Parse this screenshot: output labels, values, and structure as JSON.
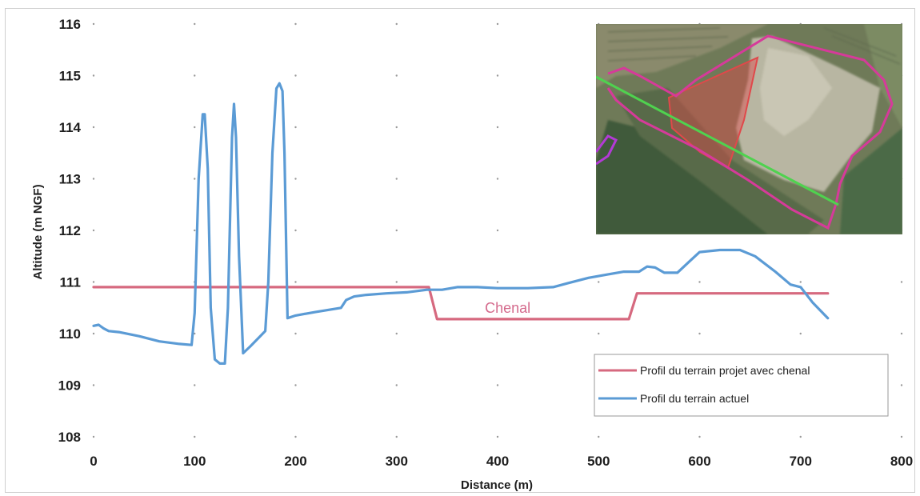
{
  "chart_data": {
    "type": "line",
    "xlabel": "Distance (m)",
    "ylabel": "Altitude (m NGF)",
    "xlim": [
      0,
      800
    ],
    "ylim": [
      108,
      116
    ],
    "x_ticks": [
      "0",
      "100",
      "200",
      "300",
      "400",
      "500",
      "600",
      "700",
      "800"
    ],
    "y_ticks": [
      "108",
      "109",
      "110",
      "111",
      "112",
      "113",
      "114",
      "115",
      "116"
    ],
    "grid": "dotted-points",
    "legend_position": "bottom-right",
    "annotation": {
      "text": "Chenal",
      "x": 410,
      "y": 110.5
    },
    "series": [
      {
        "name": "Profil du terrain projet avec chenal",
        "color": "#d6697f",
        "points": [
          [
            0,
            110.9
          ],
          [
            332,
            110.9
          ],
          [
            340,
            110.28
          ],
          [
            530,
            110.28
          ],
          [
            538,
            110.78
          ],
          [
            727,
            110.78
          ]
        ]
      },
      {
        "name": "Profil du terrain actuel",
        "color": "#5b9bd5",
        "points": [
          [
            0,
            110.15
          ],
          [
            5,
            110.17
          ],
          [
            10,
            110.1
          ],
          [
            15,
            110.05
          ],
          [
            25,
            110.03
          ],
          [
            45,
            109.95
          ],
          [
            65,
            109.85
          ],
          [
            85,
            109.8
          ],
          [
            97,
            109.78
          ],
          [
            100,
            110.4
          ],
          [
            104,
            113.0
          ],
          [
            108,
            114.25
          ],
          [
            110,
            114.25
          ],
          [
            113,
            113.2
          ],
          [
            116,
            110.5
          ],
          [
            120,
            109.5
          ],
          [
            125,
            109.42
          ],
          [
            130,
            109.42
          ],
          [
            133,
            110.5
          ],
          [
            137,
            113.8
          ],
          [
            139,
            114.45
          ],
          [
            141,
            113.8
          ],
          [
            144,
            111.5
          ],
          [
            148,
            109.62
          ],
          [
            155,
            109.75
          ],
          [
            165,
            109.95
          ],
          [
            170,
            110.05
          ],
          [
            173,
            111.0
          ],
          [
            177,
            113.5
          ],
          [
            181,
            114.75
          ],
          [
            184,
            114.85
          ],
          [
            187,
            114.7
          ],
          [
            189,
            113.5
          ],
          [
            192,
            110.3
          ],
          [
            200,
            110.35
          ],
          [
            220,
            110.42
          ],
          [
            245,
            110.5
          ],
          [
            250,
            110.65
          ],
          [
            258,
            110.72
          ],
          [
            270,
            110.75
          ],
          [
            290,
            110.78
          ],
          [
            310,
            110.8
          ],
          [
            330,
            110.85
          ],
          [
            345,
            110.85
          ],
          [
            360,
            110.9
          ],
          [
            380,
            110.9
          ],
          [
            400,
            110.88
          ],
          [
            430,
            110.88
          ],
          [
            455,
            110.9
          ],
          [
            470,
            110.98
          ],
          [
            490,
            111.08
          ],
          [
            510,
            111.15
          ],
          [
            525,
            111.2
          ],
          [
            540,
            111.2
          ],
          [
            548,
            111.3
          ],
          [
            556,
            111.28
          ],
          [
            565,
            111.18
          ],
          [
            578,
            111.18
          ],
          [
            590,
            111.4
          ],
          [
            600,
            111.58
          ],
          [
            620,
            111.62
          ],
          [
            640,
            111.62
          ],
          [
            655,
            111.5
          ],
          [
            675,
            111.2
          ],
          [
            690,
            110.95
          ],
          [
            700,
            110.9
          ],
          [
            712,
            110.6
          ],
          [
            727,
            110.3
          ]
        ]
      }
    ],
    "inset_image": {
      "description_color_boundary": "#d63a9a",
      "description_color_fill": "#e0484a",
      "description_color_line": "#4fd24f"
    }
  }
}
